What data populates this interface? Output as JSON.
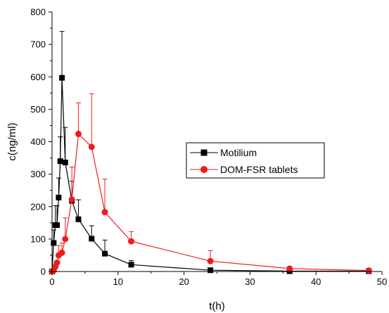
{
  "chart_data": {
    "type": "line",
    "xlabel": "t(h)",
    "ylabel": "c(ng/ml)",
    "xlim": [
      0,
      50
    ],
    "ylim": [
      0,
      800
    ],
    "xticks": [
      0,
      10,
      20,
      30,
      40,
      50
    ],
    "yticks": [
      0,
      100,
      200,
      300,
      400,
      500,
      600,
      700,
      800
    ],
    "grid": false,
    "legend_position": "center-right",
    "series": [
      {
        "name": "Motilium",
        "color": "#000000",
        "marker": "square",
        "points": [
          {
            "x": 0,
            "y": 0,
            "err": 0
          },
          {
            "x": 0.25,
            "y": 88,
            "err": 40
          },
          {
            "x": 0.5,
            "y": 143,
            "err": 60
          },
          {
            "x": 0.75,
            "y": 143,
            "err": 60
          },
          {
            "x": 1,
            "y": 228,
            "err": 60
          },
          {
            "x": 1.25,
            "y": 340,
            "err": 75
          },
          {
            "x": 1.5,
            "y": 597,
            "err": 143
          },
          {
            "x": 2,
            "y": 336,
            "err": 108
          },
          {
            "x": 3,
            "y": 218,
            "err": 60
          },
          {
            "x": 4,
            "y": 161,
            "err": 60
          },
          {
            "x": 6,
            "y": 101,
            "err": 40
          },
          {
            "x": 8,
            "y": 55,
            "err": 42
          },
          {
            "x": 12,
            "y": 21,
            "err": 13
          },
          {
            "x": 24,
            "y": 4,
            "err": 0
          },
          {
            "x": 36,
            "y": 1,
            "err": 0
          },
          {
            "x": 48,
            "y": 1,
            "err": 0
          }
        ]
      },
      {
        "name": "DOM-FSR tablets",
        "color": "#ee1c1c",
        "marker": "circle",
        "points": [
          {
            "x": 0,
            "y": 0,
            "err": 0
          },
          {
            "x": 0.25,
            "y": 3,
            "err": 0
          },
          {
            "x": 0.5,
            "y": 15,
            "err": 0
          },
          {
            "x": 0.75,
            "y": 27,
            "err": 0
          },
          {
            "x": 1,
            "y": 50,
            "err": 30
          },
          {
            "x": 1.5,
            "y": 58,
            "err": 30
          },
          {
            "x": 2,
            "y": 100,
            "err": 65
          },
          {
            "x": 3,
            "y": 222,
            "err": 100
          },
          {
            "x": 4,
            "y": 424,
            "err": 96
          },
          {
            "x": 6,
            "y": 384,
            "err": 164
          },
          {
            "x": 8,
            "y": 183,
            "err": 102
          },
          {
            "x": 12,
            "y": 93,
            "err": 30
          },
          {
            "x": 24,
            "y": 32,
            "err": 32
          },
          {
            "x": 36,
            "y": 9,
            "err": 4
          },
          {
            "x": 48,
            "y": 3,
            "err": 0
          }
        ]
      }
    ]
  }
}
